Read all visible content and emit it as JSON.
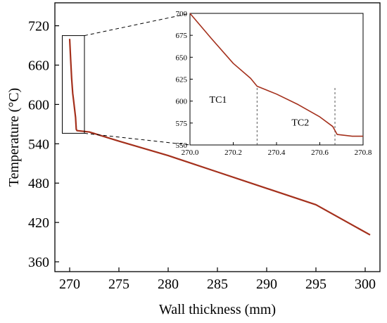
{
  "chart_data": [
    {
      "type": "line",
      "xlabel": "Wall thickness (mm)",
      "ylabel": "Temperature (°C)",
      "xlim": [
        268.5,
        301.5
      ],
      "ylim": [
        345,
        755
      ],
      "xticks": [
        "270",
        "275",
        "280",
        "285",
        "290",
        "295",
        "300"
      ],
      "yticks": [
        "360",
        "420",
        "480",
        "540",
        "600",
        "660",
        "720"
      ],
      "series": [
        {
          "color": "#a4301c",
          "x": [
            270.0,
            270.1,
            270.2,
            270.31,
            270.4,
            270.5,
            270.6,
            270.67,
            270.75,
            270.8,
            272.0,
            275.0,
            280.0,
            285.0,
            290.0,
            295.0,
            300.5
          ],
          "y": [
            700,
            669,
            640,
            617,
            606,
            593,
            580,
            562,
            560,
            560,
            558,
            544,
            522,
            497,
            472,
            447,
            401
          ]
        }
      ],
      "zoom_box": {
        "x": [
          269.25,
          271.5
        ],
        "y": [
          556,
          705
        ]
      }
    },
    {
      "type": "line",
      "title": "",
      "xlim": [
        270.0,
        270.8
      ],
      "ylim": [
        550,
        700
      ],
      "xticks": [
        "270.0",
        "270.2",
        "270.4",
        "270.6",
        "270.8"
      ],
      "yticks": [
        "550",
        "575",
        "600",
        "625",
        "650",
        "675",
        "700"
      ],
      "series": [
        {
          "color": "#a4301c",
          "x": [
            270.0,
            270.1,
            270.2,
            270.28,
            270.31,
            270.4,
            270.5,
            270.6,
            270.66,
            270.68,
            270.75,
            270.8
          ],
          "y": [
            700,
            671,
            643,
            626,
            617,
            608,
            596,
            582,
            571,
            562,
            560,
            560
          ]
        }
      ],
      "vlines": [
        270.31,
        270.67
      ],
      "annotations": [
        {
          "text": "TC1",
          "x": 270.13,
          "y": 598
        },
        {
          "text": "TC2",
          "x": 270.51,
          "y": 572
        }
      ]
    }
  ]
}
